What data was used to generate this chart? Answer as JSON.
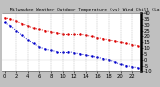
{
  "title": "   Milwaukee Weather Outdoor Temperature (vs) Wind Chill (Last 24 Hours)",
  "background_color": "#c0c0c0",
  "plot_background": "#ffffff",
  "hours": [
    0,
    1,
    2,
    3,
    4,
    5,
    6,
    7,
    8,
    9,
    10,
    11,
    12,
    13,
    14,
    15,
    16,
    17,
    18,
    19,
    20,
    21,
    22,
    23
  ],
  "temp": [
    36,
    35,
    33,
    31,
    29,
    27,
    26,
    25,
    24,
    23,
    22,
    22,
    22,
    22,
    21,
    20,
    19,
    18,
    17,
    16,
    15,
    14,
    13,
    12
  ],
  "windchill": [
    32,
    29,
    25,
    21,
    17,
    14,
    11,
    9,
    8,
    7,
    7,
    7,
    6,
    5,
    4,
    3,
    2,
    1,
    0,
    -2,
    -4,
    -5,
    -6,
    -7
  ],
  "temp_color": "#dd0000",
  "windchill_color": "#0000cc",
  "ylim_min": -10,
  "ylim_max": 40,
  "ytick_values": [
    40,
    35,
    30,
    25,
    20,
    15,
    10,
    5,
    0,
    -5,
    -10
  ],
  "ytick_labels": [
    "40",
    "35",
    "30",
    "25",
    "20",
    "15",
    "10",
    "5",
    "0",
    "-5",
    "-10"
  ],
  "xtick_values": [
    0,
    2,
    4,
    6,
    8,
    10,
    12,
    14,
    16,
    18,
    20,
    22
  ],
  "xtick_labels": [
    "0",
    "2",
    "4",
    "6",
    "8",
    "10",
    "12",
    "14",
    "16",
    "18",
    "20",
    "22"
  ],
  "grid_color": "#999999",
  "grid_x_positions": [
    2,
    4,
    6,
    8,
    10,
    12,
    14,
    16,
    18,
    20,
    22
  ],
  "tick_label_size": 3.8,
  "title_fontsize": 3.2,
  "line_width": 0.7,
  "marker_size": 1.5
}
